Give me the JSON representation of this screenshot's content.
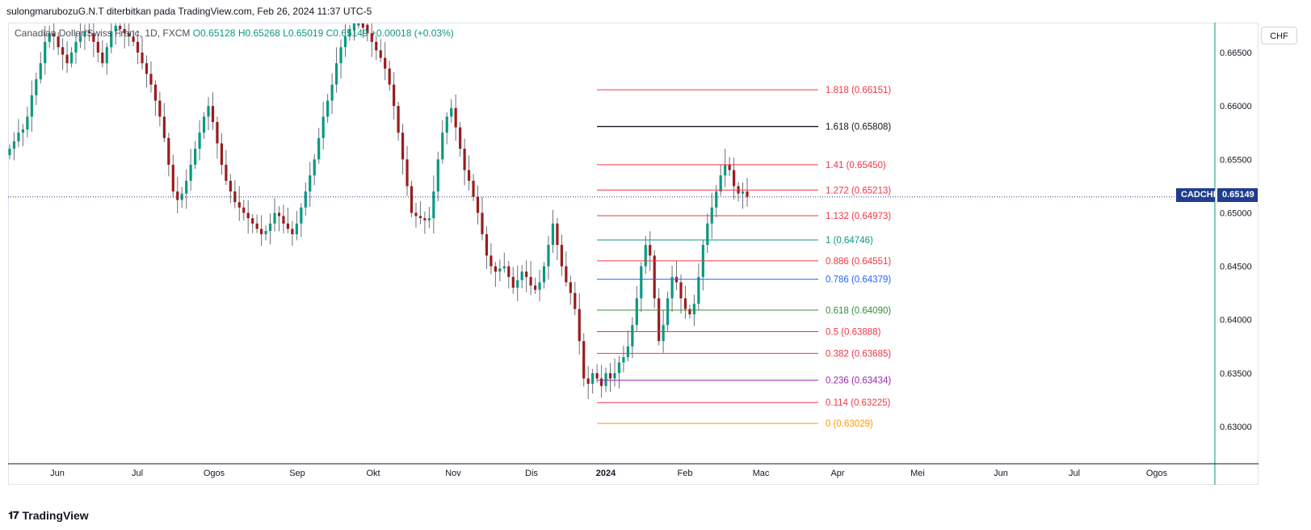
{
  "header": {
    "publish_text": "sulongmarubozuG.N.T diterbitkan pada TradingView.com, Feb 26, 2024 11:37 UTC-5"
  },
  "symbol_info": {
    "name": "Canadian Dollar/Swiss Franc, 1D, FXCM",
    "open": "O0.65128",
    "high": "H0.65268",
    "low": "L0.65019",
    "close": "C0.65149",
    "change": "+0.00018 (+0.03%)"
  },
  "currency_button": "CHF",
  "last_price": {
    "symbol_label": "CADCHF",
    "value_label": "0.65149",
    "value": 0.65149
  },
  "footer": {
    "logo_text": "TradingView",
    "logo_icon": "tradingview-logo-icon"
  },
  "colors": {
    "up": "#089981",
    "down": "#9b1c1c",
    "price_line": "#1e3d8f",
    "fib_red": "#f23645",
    "fib_black": "#131722",
    "fib_teal": "#089981",
    "fib_blue": "#2962ff",
    "fib_green": "#388e3c",
    "fib_purple": "#9c27b0",
    "fib_orange": "#ff9800"
  },
  "chart_data": {
    "type": "candlestick",
    "symbol": "CADCHF",
    "timeframe": "1D",
    "x_ticks": [
      "Jun",
      "Jul",
      "Ogos",
      "Sep",
      "Okt",
      "Nov",
      "Dis",
      "2024",
      "Feb",
      "Mac",
      "Apr",
      "Mei",
      "Jun",
      "Jul",
      "Ogos"
    ],
    "y_ticks": [
      "0.66500",
      "0.66000",
      "0.65500",
      "0.65000",
      "0.64500",
      "0.64000",
      "0.63500",
      "0.63000"
    ],
    "ylim": [
      0.6262,
      0.6687
    ],
    "fib_levels": [
      {
        "ratio": "1.818",
        "value": 0.66151,
        "label": "1.818 (0.66151)",
        "color": "#f23645"
      },
      {
        "ratio": "1.618",
        "value": 0.65808,
        "label": "1.618 (0.65808)",
        "color": "#131722"
      },
      {
        "ratio": "1.41",
        "value": 0.6545,
        "label": "1.41 (0.65450)",
        "color": "#f23645"
      },
      {
        "ratio": "1.272",
        "value": 0.65213,
        "label": "1.272 (0.65213)",
        "color": "#f23645"
      },
      {
        "ratio": "1.132",
        "value": 0.64973,
        "label": "1.132 (0.64973)",
        "color": "#f23645"
      },
      {
        "ratio": "1",
        "value": 0.64746,
        "label": "1 (0.64746)",
        "color": "#089981"
      },
      {
        "ratio": "0.886",
        "value": 0.64551,
        "label": "0.886 (0.64551)",
        "color": "#f23645"
      },
      {
        "ratio": "0.786",
        "value": 0.64379,
        "label": "0.786 (0.64379)",
        "color": "#2962ff"
      },
      {
        "ratio": "0.618",
        "value": 0.6409,
        "label": "0.618 (0.64090)",
        "color": "#388e3c"
      },
      {
        "ratio": "0.5",
        "value": 0.63888,
        "label": "0.5 (0.63888)",
        "color": "#f23645"
      },
      {
        "ratio": "0.382",
        "value": 0.63685,
        "label": "0.382 (0.63685)",
        "color": "#f23645"
      },
      {
        "ratio": "0.236",
        "value": 0.63434,
        "label": "0.236 (0.63434)",
        "color": "#9c27b0"
      },
      {
        "ratio": "0.114",
        "value": 0.63225,
        "label": "0.114 (0.63225)",
        "color": "#f23645"
      },
      {
        "ratio": "0",
        "value": 0.63029,
        "label": "0 (0.63029)",
        "color": "#ff9800"
      }
    ],
    "close_path": [
      0.656,
      0.6567,
      0.6575,
      0.6578,
      0.659,
      0.661,
      0.6625,
      0.664,
      0.666,
      0.6668,
      0.6665,
      0.6655,
      0.6648,
      0.664,
      0.665,
      0.666,
      0.6665,
      0.667,
      0.6668,
      0.666,
      0.665,
      0.664,
      0.6655,
      0.667,
      0.6675,
      0.6672,
      0.6668,
      0.6665,
      0.666,
      0.665,
      0.664,
      0.663,
      0.662,
      0.6605,
      0.659,
      0.657,
      0.6545,
      0.652,
      0.6512,
      0.6518,
      0.653,
      0.6545,
      0.656,
      0.6575,
      0.659,
      0.66,
      0.6585,
      0.6565,
      0.6545,
      0.653,
      0.652,
      0.651,
      0.6505,
      0.65,
      0.6495,
      0.649,
      0.6485,
      0.648,
      0.6483,
      0.649,
      0.65,
      0.6497,
      0.649,
      0.6485,
      0.648,
      0.649,
      0.6505,
      0.652,
      0.6535,
      0.655,
      0.657,
      0.659,
      0.6605,
      0.662,
      0.664,
      0.6655,
      0.6665,
      0.6672,
      0.6678,
      0.668,
      0.6676,
      0.6668,
      0.666,
      0.6652,
      0.6645,
      0.6635,
      0.662,
      0.66,
      0.6575,
      0.655,
      0.6525,
      0.65,
      0.6497,
      0.6495,
      0.6493,
      0.6495,
      0.652,
      0.655,
      0.6575,
      0.659,
      0.6598,
      0.658,
      0.656,
      0.654,
      0.653,
      0.6515,
      0.65,
      0.648,
      0.646,
      0.645,
      0.6445,
      0.6448,
      0.645,
      0.644,
      0.643,
      0.6437,
      0.6445,
      0.644,
      0.6432,
      0.6428,
      0.6435,
      0.645,
      0.647,
      0.649,
      0.647,
      0.645,
      0.6435,
      0.6425,
      0.641,
      0.638,
      0.6345,
      0.634,
      0.635,
      0.6345,
      0.6338,
      0.635,
      0.6345,
      0.635,
      0.636,
      0.6365,
      0.6375,
      0.6395,
      0.642,
      0.645,
      0.647,
      0.646,
      0.642,
      0.638,
      0.6395,
      0.642,
      0.644,
      0.6435,
      0.642,
      0.641,
      0.6405,
      0.6415,
      0.644,
      0.647,
      0.649,
      0.6505,
      0.652,
      0.6535,
      0.6545,
      0.654,
      0.6525,
      0.6518,
      0.652,
      0.6515
    ]
  }
}
